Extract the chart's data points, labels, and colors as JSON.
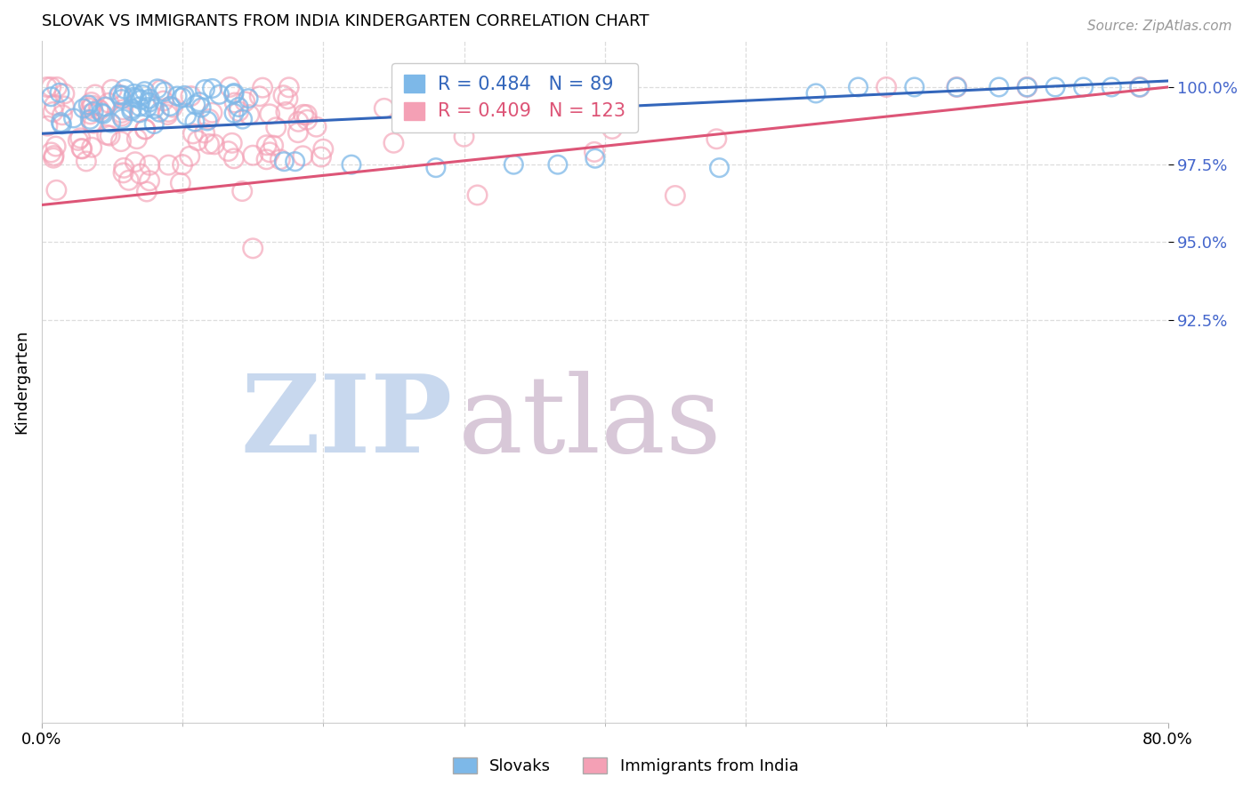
{
  "title": "SLOVAK VS IMMIGRANTS FROM INDIA KINDERGARTEN CORRELATION CHART",
  "source": "Source: ZipAtlas.com",
  "ylabel": "Kindergarten",
  "xlim": [
    0.0,
    80.0
  ],
  "ylim": [
    79.5,
    101.5
  ],
  "blue_R": 0.484,
  "blue_N": 89,
  "pink_R": 0.409,
  "pink_N": 123,
  "blue_color": "#7db8e8",
  "pink_color": "#f4a0b5",
  "blue_line_color": "#3366bb",
  "pink_line_color": "#dd5577",
  "legend_label_blue": "Slovaks",
  "legend_label_pink": "Immigrants from India",
  "watermark_zip": "ZIP",
  "watermark_atlas": "atlas",
  "watermark_color_zip": "#c8d8ee",
  "watermark_color_atlas": "#d8c8d8",
  "ytick_vals": [
    92.5,
    95.0,
    97.5,
    100.0
  ],
  "ytick_color": "#4466cc",
  "xtick_vals": [
    0.0,
    80.0
  ],
  "xtick_labels": [
    "0.0%",
    "80.0%"
  ],
  "grid_color": "#dddddd",
  "title_fontsize": 13,
  "source_fontsize": 11
}
